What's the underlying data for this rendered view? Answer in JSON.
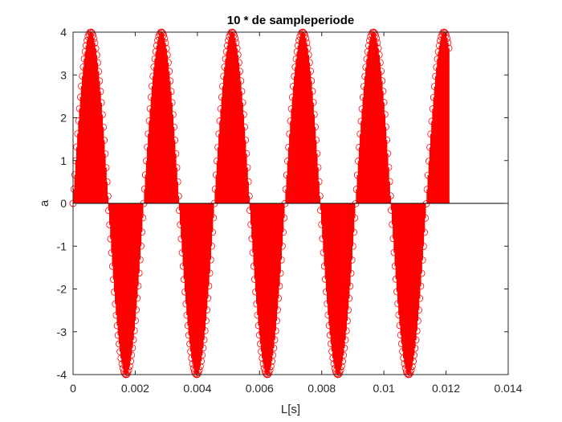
{
  "chart_data": {
    "type": "stem",
    "title": "10 * de sampleperiode",
    "xlabel": "L[s]",
    "ylabel": "a",
    "xlim": [
      0,
      0.014
    ],
    "ylim": [
      -4,
      4
    ],
    "xticks": [
      0,
      0.002,
      0.004,
      0.006,
      0.008,
      0.01,
      0.012,
      0.014
    ],
    "xtick_labels": [
      "0",
      "0.002",
      "0.004",
      "0.006",
      "0.008",
      "0.01",
      "0.012",
      "0.014"
    ],
    "yticks": [
      -4,
      -3,
      -2,
      -1,
      0,
      1,
      2,
      3,
      4
    ],
    "ytick_labels": [
      "-4",
      "-3",
      "-2",
      "-1",
      "0",
      "1",
      "2",
      "3",
      "4"
    ],
    "grid": false,
    "series": [
      {
        "amplitude": 4,
        "frequency_hz": 440,
        "x_start": 0,
        "x_end": 0.01209,
        "num_samples": 400,
        "color": "#ff0000",
        "marker": "circle"
      }
    ]
  }
}
